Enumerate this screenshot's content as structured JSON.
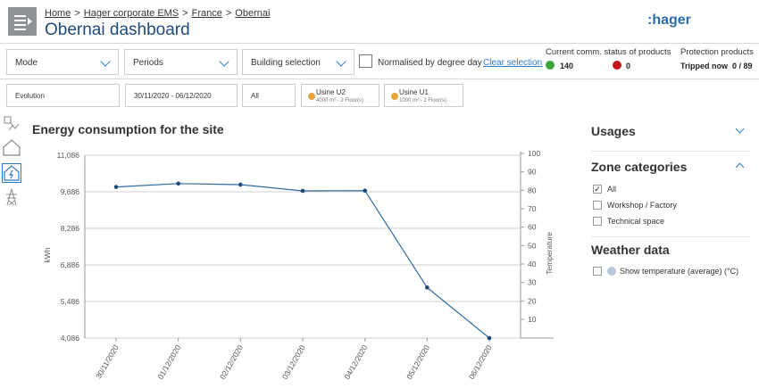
{
  "header": {
    "breadcrumb": [
      "Home",
      "Hager corporate EMS",
      "France",
      "Obernai"
    ],
    "separator": ">",
    "title": "Obernai dashboard",
    "logo": ":hager"
  },
  "filters": {
    "mode": "Mode",
    "periods": "Periods",
    "building": "Building selection",
    "normalised": "Normalised by degree day",
    "clear": "Clear selection"
  },
  "status": {
    "comm_label": "Current comm. status of products",
    "good_count": "140",
    "bad_count": "0",
    "protection_label": "Protection products",
    "tripped_label": "Tripped now",
    "tripped_value": "0 / 89",
    "good_color": "#3aa53a",
    "bad_color": "#c0171a"
  },
  "row2": {
    "evolution": "Evolution",
    "date_range": "30/11/2020 - 06/12/2020",
    "all": "All",
    "sites": [
      {
        "name": "Usine U2",
        "detail": "4000 m²   -  2 Floor(s)"
      },
      {
        "name": "Usine U1",
        "detail": "1000 m²   -  2 Floor(s)"
      }
    ]
  },
  "left_icons": [
    "zoom-chart-icon",
    "building-icon",
    "energy-icon",
    "power-pylon-icon"
  ],
  "chart_title": "Energy consumption for the site",
  "chart_data": {
    "type": "line",
    "x": [
      "30/11/2020",
      "01/12/2020",
      "02/12/2020",
      "03/12/2020",
      "04/12/2020",
      "05/12/2020",
      "06/12/2020"
    ],
    "series": [
      {
        "values": [
          9870,
          10000,
          9960,
          9720,
          9730,
          6020,
          4086
        ]
      }
    ],
    "ylabel": "kWh",
    "ylabel_right": "Temperature",
    "ylim": [
      4086,
      11086
    ],
    "yticks": [
      "11,086",
      "9,686",
      "8,286",
      "6,886",
      "5,486",
      "4,086"
    ],
    "y2ticks": [
      "100",
      "90",
      "80",
      "70",
      "60",
      "50",
      "40",
      "30",
      "20",
      "10"
    ],
    "grid": true,
    "line_color": "#2d6aa3"
  },
  "panel": {
    "usages": "Usages",
    "zone": "Zone categories",
    "zones": [
      {
        "label": "All",
        "checked": true
      },
      {
        "label": "Workshop / Factory",
        "checked": false
      },
      {
        "label": "Technical space",
        "checked": false
      }
    ],
    "weather": "Weather data",
    "weather_opt": "Show temperature (average) (°C)",
    "weather_dot_color": "#b4c7dc"
  }
}
